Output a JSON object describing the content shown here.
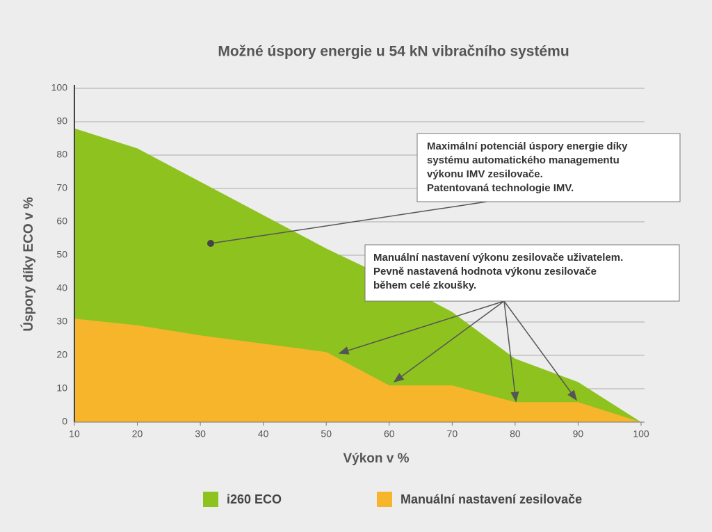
{
  "chart_data": {
    "type": "area",
    "title": "Možné úspory energie u 54 kN vibračního systému",
    "x_label": "Výkon v %",
    "y_label": "Úspory díky ECO v %",
    "x": [
      10,
      20,
      30,
      40,
      50,
      60,
      70,
      80,
      90,
      100
    ],
    "series": [
      {
        "name": "i260 ECO",
        "color": "#8dc21f",
        "values": [
          88,
          82,
          72,
          62,
          52,
          43,
          33,
          19,
          12,
          0
        ]
      },
      {
        "name": "Manuální nastavení zesilovače",
        "color": "#f7b52c",
        "values": [
          31,
          29,
          26,
          23.5,
          21,
          11,
          11,
          6,
          6,
          0
        ]
      }
    ],
    "xlim": [
      10,
      100
    ],
    "xticks": [
      10,
      20,
      30,
      40,
      50,
      60,
      70,
      80,
      90,
      100
    ],
    "ylim": [
      0,
      100
    ],
    "yticks": [
      0,
      10,
      20,
      30,
      40,
      50,
      60,
      70,
      80,
      90,
      100
    ],
    "grid": true,
    "annotations": [
      [
        "Maximální potenciál úspory energie díky",
        "systému automatického managementu",
        "výkonu IMV zesilovače.",
        "Patentovaná technologie IMV."
      ],
      [
        "Manuální nastavení výkonu zesilovače uživatelem.",
        "Pevně nastavená hodnota výkonu zesilovače",
        "během celé zkoušky."
      ]
    ]
  }
}
